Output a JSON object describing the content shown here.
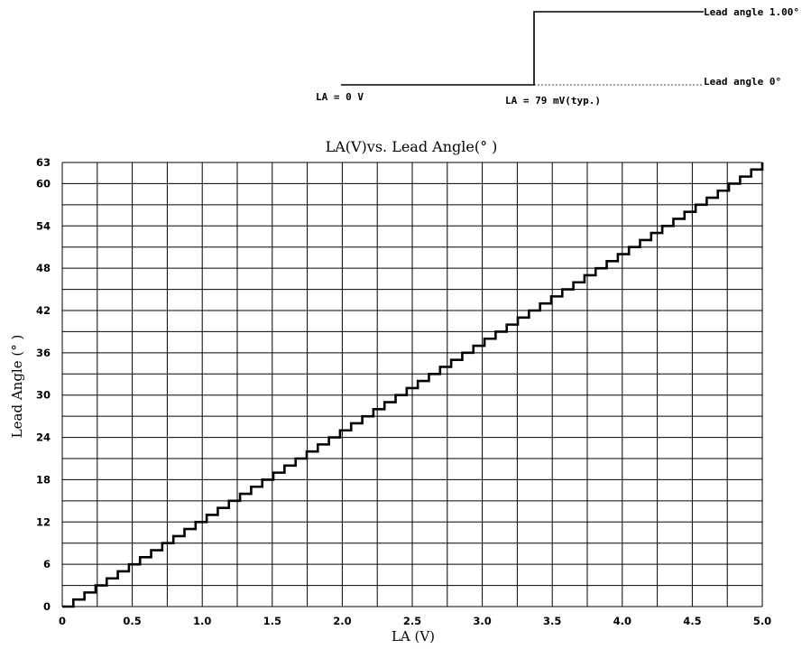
{
  "diagram": {
    "lead_angle_high_label": "Lead angle 1.00°",
    "lead_angle_low_label": "Lead angle 0°",
    "la_zero_label": "LA = 0 V",
    "la_threshold_label": "LA = 79 mV(typ.)"
  },
  "chart_data": {
    "type": "line",
    "title": "LA(V)vs. Lead Angle(° )",
    "xlabel": "LA (V)",
    "ylabel": "Lead Angle (° )",
    "xlim": [
      0,
      5.0
    ],
    "ylim": [
      0,
      63
    ],
    "grid": true,
    "x_ticks": [
      0,
      0.5,
      1.0,
      1.5,
      2.0,
      2.5,
      3.0,
      3.5,
      4.0,
      4.5,
      5.0
    ],
    "x_tick_labels": [
      "0",
      "0.5",
      "1.0",
      "1.5",
      "2.0",
      "2.5",
      "3.0",
      "3.5",
      "4.0",
      "4.5",
      "5.0"
    ],
    "y_ticks": [
      0,
      6,
      12,
      18,
      24,
      30,
      36,
      42,
      48,
      54,
      60,
      63
    ],
    "y_tick_labels": [
      "0",
      "6",
      "12",
      "18",
      "24",
      "30",
      "36",
      "42",
      "48",
      "54",
      "60",
      "63"
    ],
    "step_threshold_v": 0.079,
    "step_degrees": 1.0,
    "steps": 63,
    "series": [
      {
        "style": "staircase",
        "x": [
          0,
          0.079,
          5.0
        ],
        "y": [
          0,
          1,
          63
        ]
      }
    ]
  }
}
